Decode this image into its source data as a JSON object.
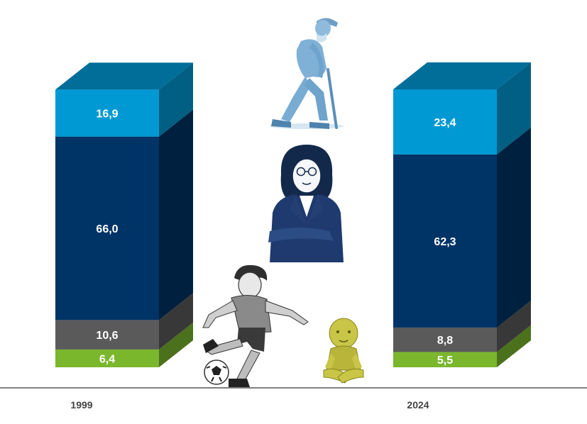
{
  "chart_data": {
    "type": "bar",
    "stacked": true,
    "style": "3d",
    "categories": [
      "1999",
      "2024"
    ],
    "series": [
      {
        "values": [
          6.4,
          5.5
        ],
        "labels": [
          "6,4",
          "5,5"
        ],
        "color": "#7ab72d"
      },
      {
        "values": [
          10.6,
          8.8
        ],
        "labels": [
          "10,6",
          "8,8"
        ],
        "color": "#5a5a5a"
      },
      {
        "values": [
          66.0,
          62.3
        ],
        "labels": [
          "66,0",
          "62,3"
        ],
        "color": "#003366"
      },
      {
        "values": [
          16.9,
          23.4
        ],
        "labels": [
          "16,9",
          "23,4"
        ],
        "color": "#0099d4"
      }
    ],
    "ylim": [
      0,
      100
    ],
    "grid": false,
    "legend": "none",
    "illustrations": [
      "elderly-man-with-cane-icon",
      "businesswoman-icon",
      "boy-kicking-ball-icon",
      "baby-sitting-icon"
    ]
  }
}
